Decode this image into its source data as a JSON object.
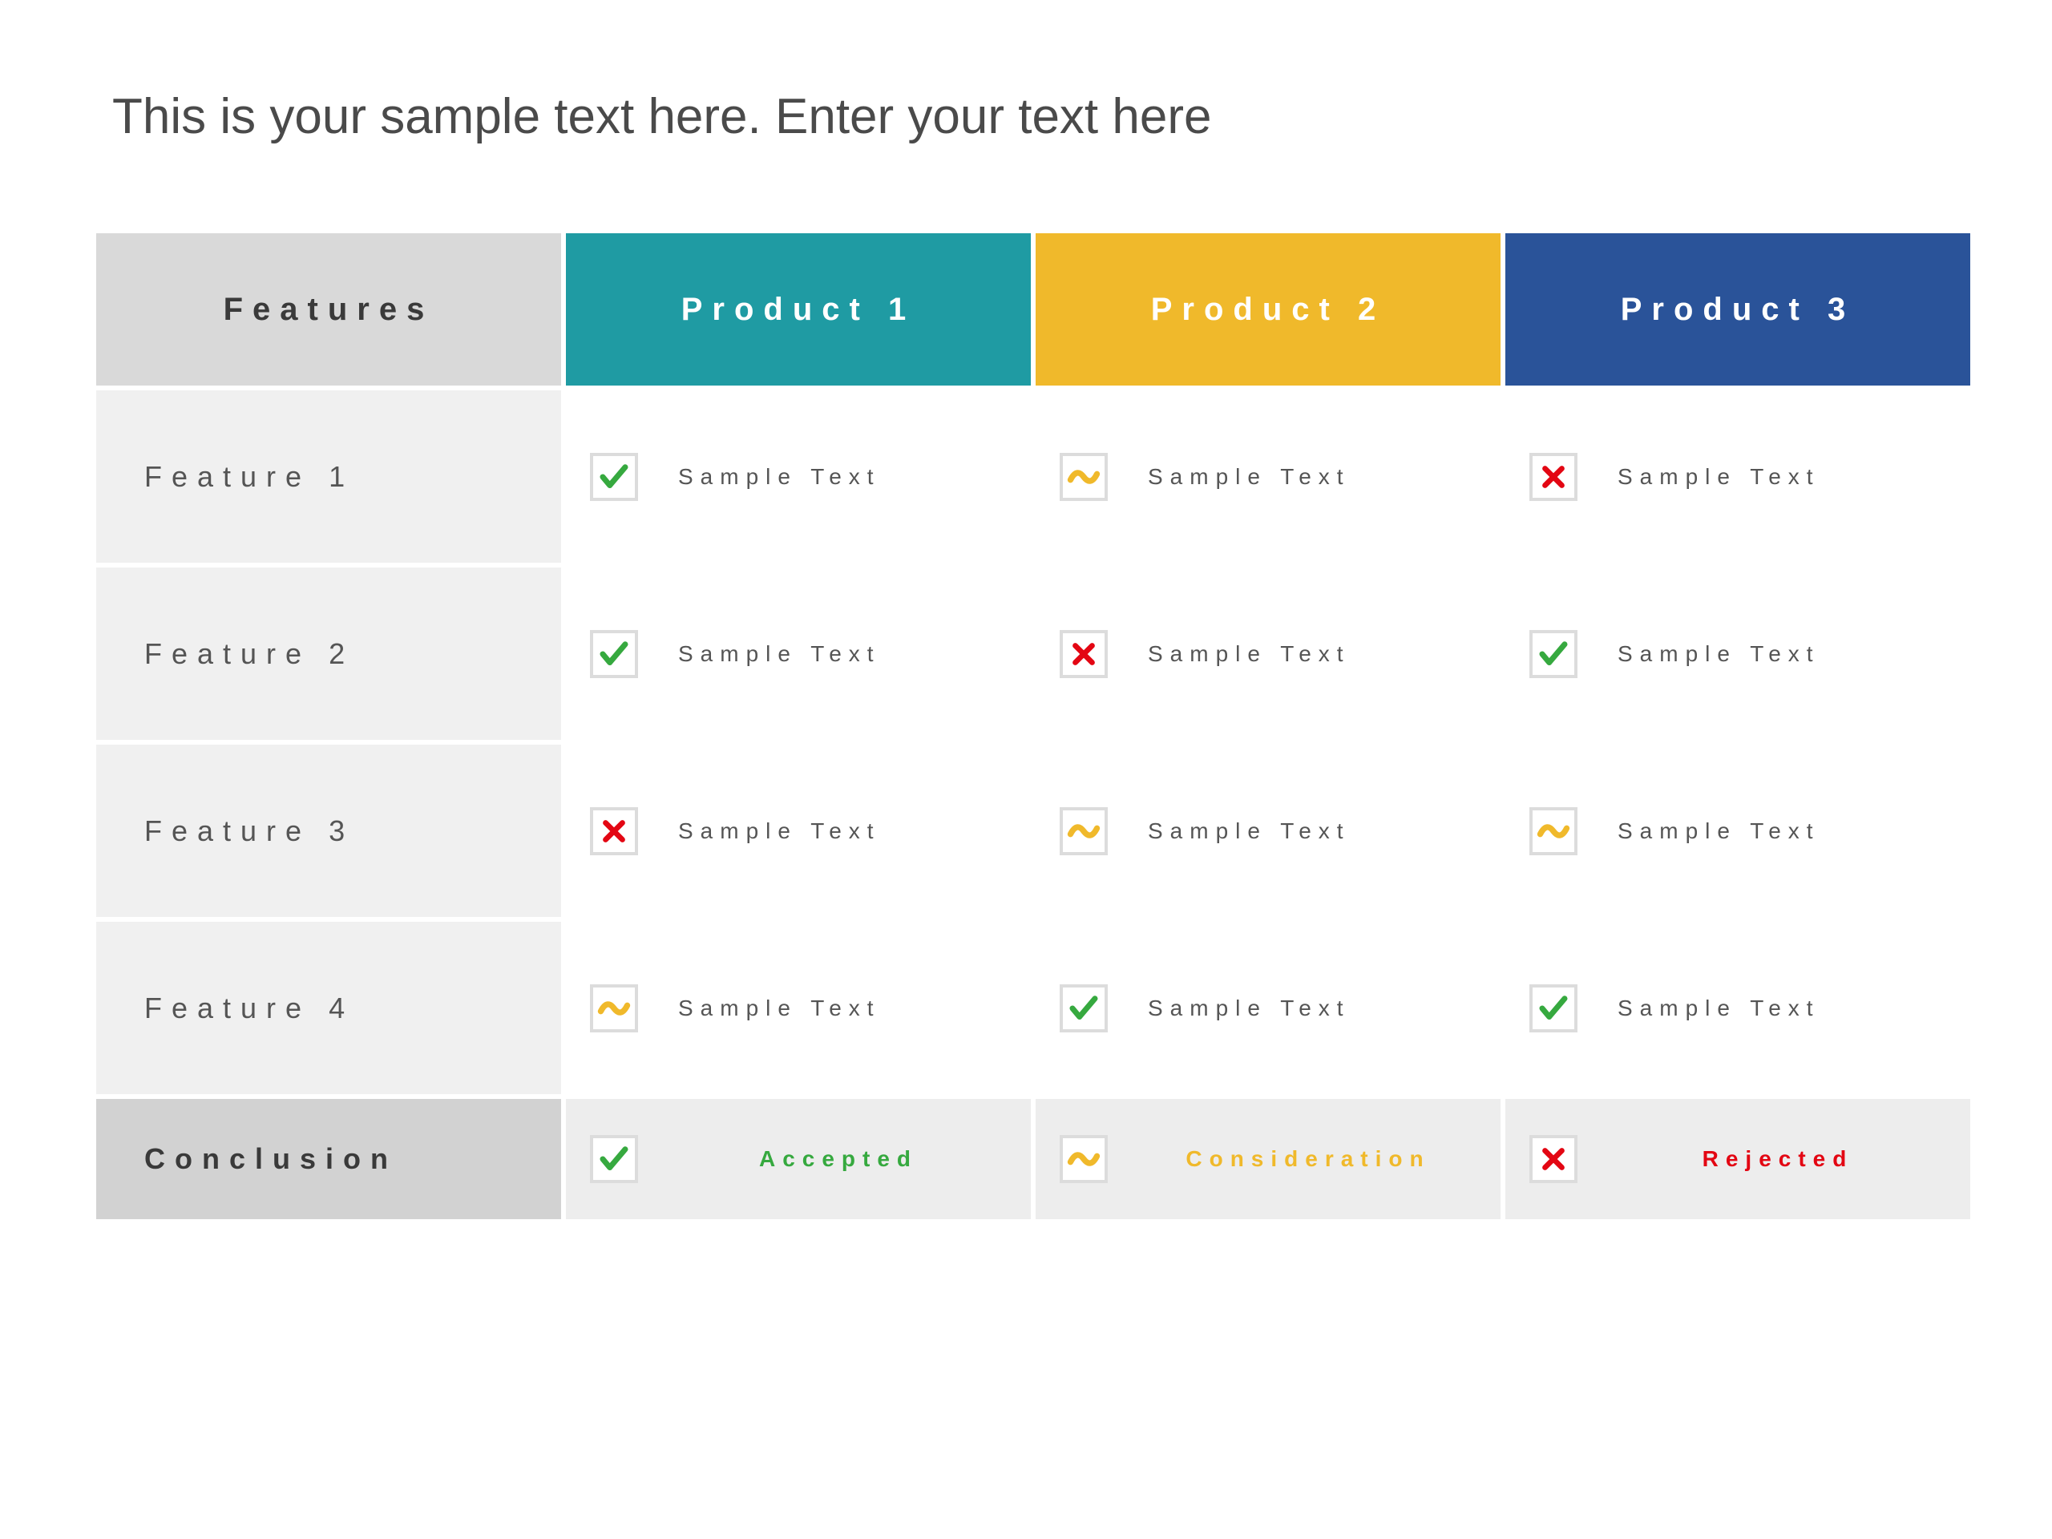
{
  "title": "This is your sample text here. Enter your text here",
  "colors": {
    "features_header_bg": "#d9d9d9",
    "features_header_text": "#3a3a3a",
    "product_headers": [
      "#1f9ba3",
      "#f0b92b",
      "#2a5399"
    ],
    "feature_row_bg": "#f0f0f0",
    "data_cell_bg": "#ffffff",
    "conclusion_label_bg": "#d2d2d2",
    "conclusion_cell_bg": "#ededed",
    "icon_border": "#dcdcdc",
    "check": "#36a93f",
    "cross": "#e30613",
    "tilde": "#f0b92b",
    "text_gray": "#555555"
  },
  "headers": {
    "features": "Features",
    "products": [
      "Product 1",
      "Product 2",
      "Product 3"
    ]
  },
  "rows": [
    {
      "label": "Feature 1",
      "cells": [
        {
          "icon": "check",
          "text": "Sample Text"
        },
        {
          "icon": "tilde",
          "text": "Sample Text"
        },
        {
          "icon": "cross",
          "text": "Sample Text"
        }
      ]
    },
    {
      "label": "Feature 2",
      "cells": [
        {
          "icon": "check",
          "text": "Sample Text"
        },
        {
          "icon": "cross",
          "text": "Sample Text"
        },
        {
          "icon": "check",
          "text": "Sample Text"
        }
      ]
    },
    {
      "label": "Feature 3",
      "cells": [
        {
          "icon": "cross",
          "text": "Sample Text"
        },
        {
          "icon": "tilde",
          "text": "Sample Text"
        },
        {
          "icon": "tilde",
          "text": "Sample Text"
        }
      ]
    },
    {
      "label": "Feature 4",
      "cells": [
        {
          "icon": "tilde",
          "text": "Sample Text"
        },
        {
          "icon": "check",
          "text": "Sample Text"
        },
        {
          "icon": "check",
          "text": "Sample Text"
        }
      ]
    }
  ],
  "conclusion": {
    "label": "Conclusion",
    "cells": [
      {
        "icon": "check",
        "text": "Accepted",
        "text_color": "#36a93f"
      },
      {
        "icon": "tilde",
        "text": "Consideration",
        "text_color": "#f0b92b"
      },
      {
        "icon": "cross",
        "text": "Rejected",
        "text_color": "#e30613"
      }
    ]
  }
}
